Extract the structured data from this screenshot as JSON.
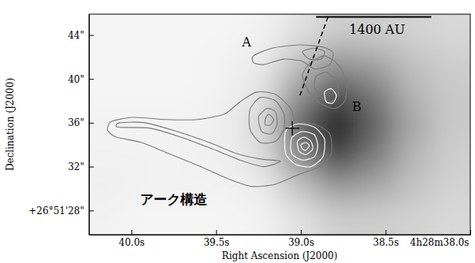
{
  "chart_data": {
    "type": "contour",
    "xlabel": "Right Ascension (J2000)",
    "ylabel": "Declination (J2000)",
    "xlim": [
      40.25,
      38.0
    ],
    "ylim": [
      25.8,
      45.9
    ],
    "xticks": [
      {
        "value": 40.0,
        "label": "40.0s"
      },
      {
        "value": 39.5,
        "label": "39.5s"
      },
      {
        "value": 39.0,
        "label": "39.0s"
      },
      {
        "value": 38.5,
        "label": "38.5s"
      },
      {
        "value": 38.0,
        "label": "4h28m38.0s"
      }
    ],
    "yticks": [
      {
        "value": 28,
        "label": "+26°51'28\""
      },
      {
        "value": 32,
        "label": "32\""
      },
      {
        "value": 36,
        "label": "36\""
      },
      {
        "value": 40,
        "label": "40\""
      },
      {
        "value": 44,
        "label": "44\""
      }
    ],
    "image": {
      "x": [
        40.14,
        39.92,
        39.69,
        39.46,
        39.24,
        39.01,
        38.79,
        38.56,
        38.34,
        38.11
      ],
      "y": [
        44.5,
        41.6,
        38.8,
        35.9,
        33.0,
        30.2,
        27.3
      ],
      "values": [
        [
          0.08,
          0.08,
          0.08,
          0.08,
          0.1,
          0.2,
          0.3,
          0.3,
          0.28,
          0.25
        ],
        [
          0.08,
          0.08,
          0.08,
          0.1,
          0.15,
          0.35,
          0.5,
          0.45,
          0.35,
          0.3
        ],
        [
          0.08,
          0.08,
          0.08,
          0.1,
          0.2,
          0.5,
          0.75,
          0.6,
          0.4,
          0.32
        ],
        [
          0.1,
          0.1,
          0.1,
          0.12,
          0.25,
          0.7,
          0.95,
          0.7,
          0.45,
          0.32
        ],
        [
          0.1,
          0.1,
          0.1,
          0.12,
          0.22,
          0.55,
          0.8,
          0.6,
          0.4,
          0.3
        ],
        [
          0.12,
          0.1,
          0.1,
          0.1,
          0.15,
          0.35,
          0.5,
          0.45,
          0.35,
          0.28
        ],
        [
          0.1,
          0.08,
          0.08,
          0.08,
          0.1,
          0.2,
          0.3,
          0.3,
          0.28,
          0.25
        ]
      ]
    },
    "contours": [
      {
        "color": "#7a7a7a",
        "points": [
          [
            40.12,
            36.1
          ],
          [
            39.99,
            36.5
          ],
          [
            39.8,
            36.3
          ],
          [
            39.61,
            36.3
          ],
          [
            39.45,
            36.8
          ],
          [
            39.36,
            37.9
          ],
          [
            39.26,
            38.8
          ],
          [
            39.15,
            38.6
          ],
          [
            39.06,
            37.3
          ],
          [
            39.03,
            36.1
          ],
          [
            38.92,
            35.9
          ],
          [
            38.83,
            35.0
          ],
          [
            38.82,
            33.2
          ],
          [
            38.89,
            32.0
          ],
          [
            39.01,
            31.3
          ],
          [
            39.15,
            30.4
          ],
          [
            39.29,
            30.2
          ],
          [
            39.43,
            30.9
          ],
          [
            39.59,
            32.0
          ],
          [
            39.78,
            33.2
          ],
          [
            39.94,
            34.2
          ],
          [
            40.09,
            34.7
          ],
          [
            40.14,
            35.3
          ]
        ]
      },
      {
        "color": "#7a7a7a",
        "points": [
          [
            40.08,
            35.6
          ],
          [
            39.89,
            35.5
          ],
          [
            39.71,
            34.7
          ],
          [
            39.52,
            33.6
          ],
          [
            39.36,
            32.6
          ],
          [
            39.22,
            32.0
          ],
          [
            39.12,
            32.5
          ],
          [
            39.24,
            32.7
          ],
          [
            39.38,
            33.2
          ],
          [
            39.54,
            34.2
          ],
          [
            39.73,
            35.2
          ],
          [
            39.92,
            36.0
          ],
          [
            40.07,
            36.0
          ]
        ]
      },
      {
        "color": "#7a7a7a",
        "points": [
          [
            39.3,
            37.2
          ],
          [
            39.24,
            38.3
          ],
          [
            39.15,
            38.0
          ],
          [
            39.1,
            36.8
          ],
          [
            39.1,
            35.4
          ],
          [
            39.15,
            34.3
          ],
          [
            39.24,
            34.2
          ],
          [
            39.3,
            35.4
          ]
        ]
      },
      {
        "color": "#7a7a7a",
        "points": [
          [
            39.25,
            36.5
          ],
          [
            39.2,
            37.3
          ],
          [
            39.15,
            37.0
          ],
          [
            39.14,
            35.9
          ],
          [
            39.17,
            35.0
          ],
          [
            39.23,
            35.2
          ]
        ]
      },
      {
        "color": "#7a7a7a",
        "points": [
          [
            39.21,
            36.3
          ],
          [
            39.19,
            36.8
          ],
          [
            39.16,
            36.3
          ],
          [
            39.18,
            35.8
          ],
          [
            39.21,
            35.8
          ]
        ]
      },
      {
        "color": "#ffffff",
        "points": [
          [
            39.09,
            35.2
          ],
          [
            39.02,
            35.9
          ],
          [
            38.92,
            35.6
          ],
          [
            38.86,
            34.5
          ],
          [
            38.87,
            32.9
          ],
          [
            38.94,
            32.0
          ],
          [
            39.03,
            32.2
          ],
          [
            39.09,
            33.2
          ]
        ]
      },
      {
        "color": "#ffffff",
        "points": [
          [
            39.05,
            34.7
          ],
          [
            38.99,
            35.2
          ],
          [
            38.92,
            34.9
          ],
          [
            38.9,
            33.9
          ],
          [
            38.92,
            32.9
          ],
          [
            38.99,
            32.6
          ],
          [
            39.05,
            33.1
          ],
          [
            39.06,
            33.9
          ]
        ]
      },
      {
        "color": "#ffffff",
        "points": [
          [
            39.02,
            34.3
          ],
          [
            38.98,
            34.7
          ],
          [
            38.94,
            34.3
          ],
          [
            38.93,
            33.6
          ],
          [
            38.97,
            33.1
          ],
          [
            39.01,
            33.4
          ]
        ]
      },
      {
        "color": "#ffffff",
        "points": [
          [
            39.0,
            34.0
          ],
          [
            38.97,
            34.2
          ],
          [
            38.95,
            33.9
          ],
          [
            38.97,
            33.5
          ],
          [
            38.99,
            33.6
          ]
        ]
      },
      {
        "color": "#7a7a7a",
        "points": [
          [
            38.94,
            41.5
          ],
          [
            38.86,
            42.1
          ],
          [
            38.78,
            41.3
          ],
          [
            38.73,
            39.7
          ],
          [
            38.74,
            38.0
          ],
          [
            38.8,
            37.3
          ],
          [
            38.89,
            37.8
          ],
          [
            38.96,
            39.0
          ],
          [
            38.99,
            40.4
          ]
        ]
      },
      {
        "color": "#7a7a7a",
        "points": [
          [
            38.91,
            40.2
          ],
          [
            38.85,
            40.6
          ],
          [
            38.79,
            39.8
          ],
          [
            38.78,
            38.6
          ],
          [
            38.82,
            37.9
          ],
          [
            38.88,
            38.3
          ],
          [
            38.92,
            39.3
          ]
        ]
      },
      {
        "color": "#ffffff",
        "points": [
          [
            38.86,
            38.8
          ],
          [
            38.82,
            39.1
          ],
          [
            38.79,
            38.5
          ],
          [
            38.81,
            37.8
          ],
          [
            38.85,
            37.9
          ]
        ]
      },
      {
        "color": "#7a7a7a",
        "points": [
          [
            39.28,
            42.1
          ],
          [
            39.17,
            42.8
          ],
          [
            39.01,
            43.1
          ],
          [
            38.87,
            42.9
          ],
          [
            38.81,
            42.4
          ],
          [
            38.83,
            41.3
          ],
          [
            38.92,
            40.9
          ],
          [
            38.99,
            41.6
          ],
          [
            39.1,
            41.8
          ],
          [
            39.22,
            41.3
          ],
          [
            39.28,
            41.5
          ]
        ]
      },
      {
        "color": "#7a7a7a",
        "points": [
          [
            38.99,
            42.5
          ],
          [
            38.92,
            42.8
          ],
          [
            38.86,
            42.5
          ],
          [
            38.88,
            41.8
          ],
          [
            38.95,
            41.8
          ]
        ]
      }
    ],
    "lines": [
      {
        "x": [
          38.84,
          39.01
        ],
        "y": [
          45.65,
          38.3
        ],
        "line_style": "dashed",
        "color": "#000000"
      },
      {
        "x": [
          38.91,
          38.23
        ],
        "y": [
          45.65,
          45.65
        ],
        "line_style": "solid",
        "color": "#000000"
      }
    ],
    "points": {
      "x": [
        39.05
      ],
      "y": [
        35.5
      ],
      "marker": "plus",
      "color": "#000000"
    },
    "annotations": [
      {
        "text": "A",
        "x": 39.32,
        "y": 43.3
      },
      {
        "text": "B",
        "x": 38.67,
        "y": 37.4
      },
      {
        "text": "アーク構造",
        "x": 39.75,
        "y": 28.9
      },
      {
        "text": "1400 AU",
        "x": 38.55,
        "y": 44.4
      }
    ]
  }
}
